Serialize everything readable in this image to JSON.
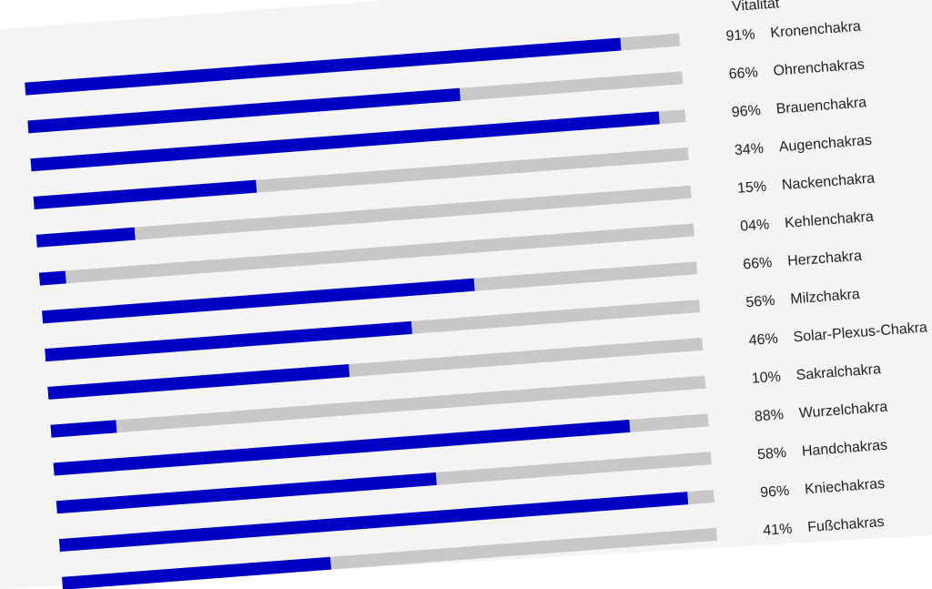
{
  "chart_data": {
    "type": "bar",
    "orientation": "horizontal",
    "header": "Vitalität",
    "unit": "%",
    "xlim": [
      0,
      100
    ],
    "bar_color": "#0000c4",
    "track_color": "#c8c8c8",
    "percent_labels": [
      "91%",
      "66%",
      "96%",
      "34%",
      "15%",
      "04%",
      "66%",
      "56%",
      "46%",
      "10%",
      "88%",
      "58%",
      "96%",
      "41%"
    ],
    "categories": [
      "Kronenchakra",
      "Ohrenchakras",
      "Brauenchakra",
      "Augenchakras",
      "Nackenchakra",
      "Kehlenchakra",
      "Herzchakra",
      "Milzchakra",
      "Solar-Plexus-Chakra",
      "Sakralchakra",
      "Wurzelchakra",
      "Handchakras",
      "Kniechakras",
      "Fußchakras"
    ],
    "values": [
      91,
      66,
      96,
      34,
      15,
      4,
      66,
      56,
      46,
      10,
      88,
      58,
      96,
      41
    ]
  }
}
